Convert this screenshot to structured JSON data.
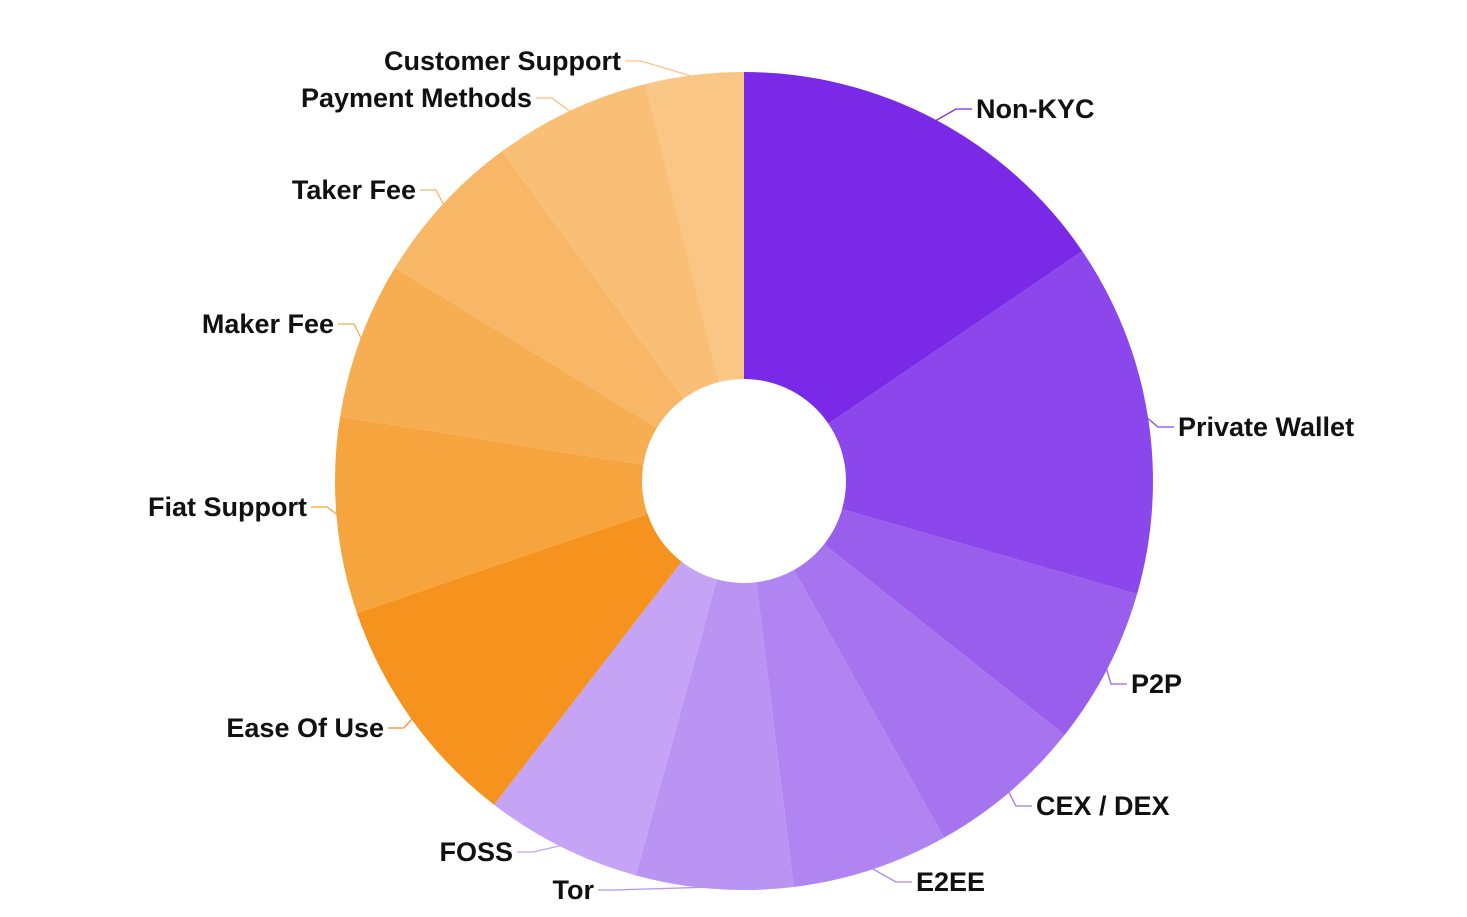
{
  "chart_data": {
    "type": "pie",
    "variant": "donut",
    "title": "",
    "legend": "none",
    "slices": [
      {
        "label": "Non-KYC",
        "value": 10,
        "color": "#7a2ae7"
      },
      {
        "label": "Private Wallet",
        "value": 9,
        "color": "#8b47eb"
      },
      {
        "label": "P2P",
        "value": 4,
        "color": "#9a5eed"
      },
      {
        "label": "CEX / DEX",
        "value": 4,
        "color": "#a774ef"
      },
      {
        "label": "E2EE",
        "value": 4,
        "color": "#b084f1"
      },
      {
        "label": "Tor",
        "value": 4,
        "color": "#b994f2"
      },
      {
        "label": "FOSS",
        "value": 4,
        "color": "#c5a3f5"
      },
      {
        "label": "Ease Of Use",
        "value": 6,
        "color": "#f5931e"
      },
      {
        "label": "Fiat Support",
        "value": 5,
        "color": "#f6a43e"
      },
      {
        "label": "Maker Fee",
        "value": 4,
        "color": "#f7ae52"
      },
      {
        "label": "Taker Fee",
        "value": 4,
        "color": "#f8b767"
      },
      {
        "label": "Payment Methods",
        "value": 4,
        "color": "#f9bf76"
      },
      {
        "label": "Customer Support",
        "value": 2.5,
        "color": "#fac686"
      }
    ]
  }
}
